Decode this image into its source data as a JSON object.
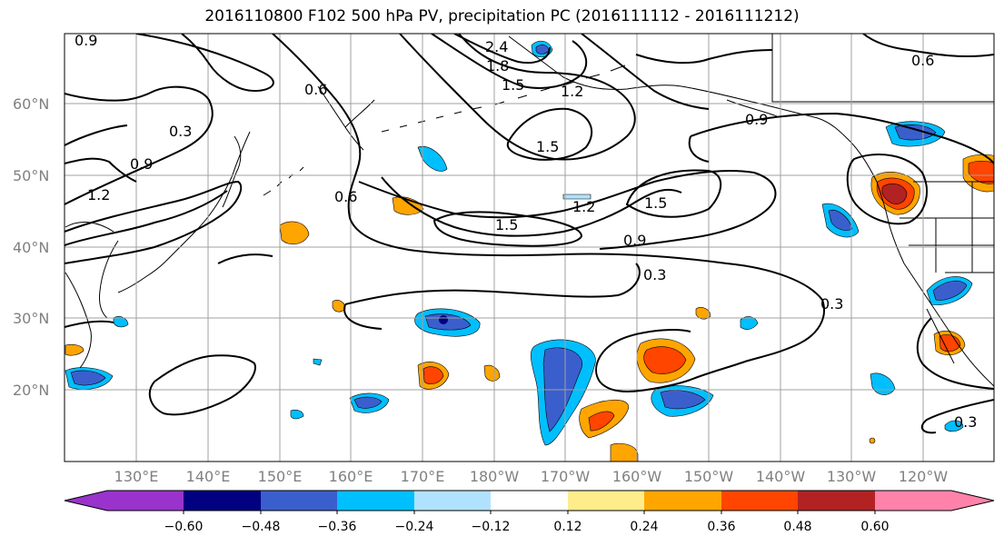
{
  "title": "2016110800 F102 500 hPa PV, precipitation PC (2016111112 - 2016111212)",
  "lat_labels": [
    "60°N",
    "50°N",
    "40°N",
    "30°N",
    "20°N"
  ],
  "lon_labels": [
    "130°E",
    "140°E",
    "150°E",
    "160°E",
    "170°E",
    "180°W",
    "170°W",
    "160°W",
    "150°W",
    "140°W",
    "130°W",
    "120°W"
  ],
  "contour_labels": [
    "0.9",
    "2.4",
    "1.8",
    "1.5",
    "1.2",
    "0.6",
    "0.3",
    "0.9",
    "1.2",
    "0.6",
    "1.5",
    "1.2",
    "1.5",
    "1.5",
    "0.9",
    "0.3",
    "0.3",
    "0.9",
    "0.6",
    "0.3"
  ],
  "colorbar": {
    "ticks": [
      "−0.60",
      "−0.48",
      "−0.36",
      "−0.24",
      "−0.12",
      "0.12",
      "0.24",
      "0.36",
      "0.48",
      "0.60"
    ],
    "colors": [
      "#9933cc",
      "#000080",
      "#3a5fcd",
      "#00bfff",
      "#b0e2ff",
      "#ffffff",
      "#ffec8b",
      "#ffa500",
      "#ff4500",
      "#b22222",
      "#ff82ab"
    ]
  }
}
